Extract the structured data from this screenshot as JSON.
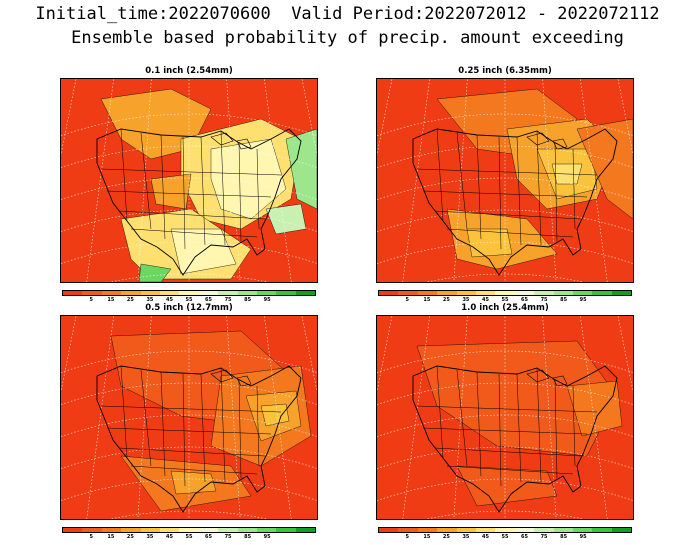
{
  "header": {
    "line1": "Initial_time:2022070600  Valid Period:2022072012 - 2022072112",
    "line2": "Ensemble based probability of precip. amount exceeding"
  },
  "legend": {
    "colors": [
      "#f03c14",
      "#f25a1c",
      "#f4781e",
      "#f7a22a",
      "#fbc23c",
      "#fde070",
      "#fff6b0",
      "#f4f8d6",
      "#c8f0b0",
      "#9ee68c",
      "#6ad860",
      "#38c438",
      "#10a020"
    ],
    "labels": [
      "5",
      "15",
      "25",
      "35",
      "45",
      "55",
      "65",
      "75",
      "85",
      "95"
    ]
  },
  "panels": [
    {
      "title": "0.1 inch (2.54mm)",
      "coverage": "high"
    },
    {
      "title": "0.25 inch (6.35mm)",
      "coverage": "medium"
    },
    {
      "title": "0.5 inch (12.7mm)",
      "coverage": "low"
    },
    {
      "title": "1.0 inch (25.4mm)",
      "coverage": "very-low"
    }
  ]
}
